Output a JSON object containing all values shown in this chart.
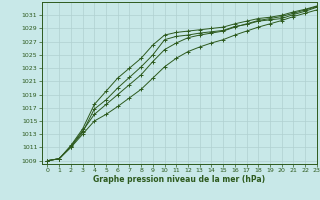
{
  "title": "Graphe pression niveau de la mer (hPa)",
  "bg_color": "#c8e8e8",
  "grid_color": "#b0d0d0",
  "line_color": "#2d5a1e",
  "marker_color": "#2d5a1e",
  "xlim": [
    -0.5,
    23
  ],
  "ylim": [
    1008.5,
    1033
  ],
  "yticks": [
    1009,
    1011,
    1013,
    1015,
    1017,
    1019,
    1021,
    1023,
    1025,
    1027,
    1029,
    1031
  ],
  "xticks": [
    0,
    1,
    2,
    3,
    4,
    5,
    6,
    7,
    8,
    9,
    10,
    11,
    12,
    13,
    14,
    15,
    16,
    17,
    18,
    19,
    20,
    21,
    22,
    23
  ],
  "series": [
    [
      1009.0,
      1009.3,
      1011.1,
      1013.3,
      1016.8,
      1018.2,
      1020.0,
      1021.6,
      1023.2,
      1025.0,
      1027.3,
      1027.8,
      1028.0,
      1028.3,
      1028.5,
      1028.7,
      1029.3,
      1029.6,
      1030.1,
      1030.3,
      1030.5,
      1031.1,
      1031.6,
      1032.2
    ],
    [
      1009.0,
      1009.3,
      1011.0,
      1013.0,
      1015.0,
      1016.0,
      1017.2,
      1018.5,
      1019.8,
      1021.5,
      1023.2,
      1024.5,
      1025.5,
      1026.2,
      1026.8,
      1027.3,
      1028.0,
      1028.6,
      1029.2,
      1029.7,
      1030.2,
      1030.8,
      1031.3,
      1031.8
    ],
    [
      1009.0,
      1009.3,
      1011.2,
      1013.5,
      1016.0,
      1017.5,
      1019.0,
      1020.5,
      1022.0,
      1024.0,
      1025.8,
      1026.8,
      1027.6,
      1028.0,
      1028.3,
      1028.6,
      1029.2,
      1029.7,
      1030.2,
      1030.5,
      1030.8,
      1031.3,
      1031.8,
      1032.3
    ],
    [
      1009.0,
      1009.3,
      1011.3,
      1013.8,
      1017.5,
      1019.5,
      1021.5,
      1023.0,
      1024.5,
      1026.5,
      1028.0,
      1028.4,
      1028.6,
      1028.8,
      1029.0,
      1029.2,
      1029.7,
      1030.1,
      1030.5,
      1030.7,
      1031.0,
      1031.5,
      1031.9,
      1032.4
    ]
  ]
}
